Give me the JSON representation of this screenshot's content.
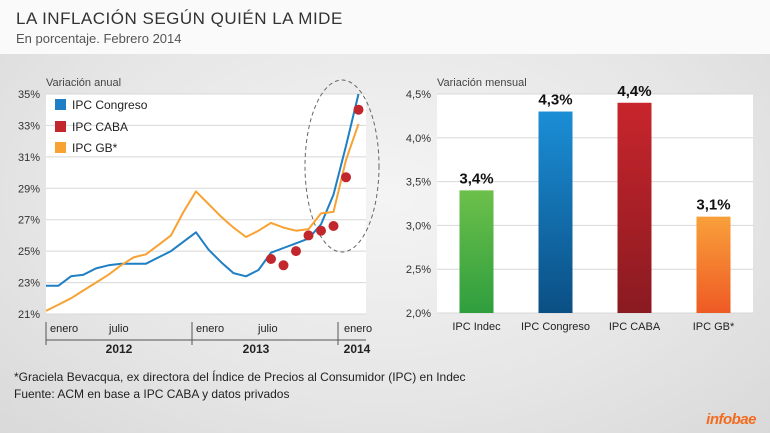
{
  "header": {
    "title": "LA INFLACIÓN SEGÚN QUIÉN LA MIDE",
    "subtitle": "En porcentaje. Febrero 2014"
  },
  "footer": {
    "note": "*Graciela Bevacqua, ex directora del Índice de Precios al Consumidor (IPC) en Indec",
    "source": "Fuente: ACM en base a IPC CABA y datos privados",
    "brand": "infobae"
  },
  "chart_data": [
    {
      "type": "line",
      "title": "Variación anual",
      "legend": [
        "IPC Congreso",
        "IPC CABA",
        "IPC GB*"
      ],
      "legend_placement": "top-left",
      "x_axis": {
        "month_labels": [
          "enero",
          "julio",
          "enero",
          "julio",
          "enero"
        ],
        "year_labels": [
          "2012",
          "2013",
          "2014"
        ]
      },
      "y_axis": {
        "ylim": [
          21,
          35
        ],
        "ticks": [
          "21%",
          "23%",
          "25%",
          "27%",
          "29%",
          "31%",
          "33%",
          "35%"
        ]
      },
      "grid": true,
      "highlight": "dashed ellipse around Dec 2013 – Feb 2014",
      "series": [
        {
          "name": "IPC Congreso",
          "color": "#1f7fc4",
          "style": "line",
          "x": [
            0,
            1,
            2,
            3,
            4,
            5,
            6,
            7,
            8,
            9,
            10,
            11,
            12,
            13,
            14,
            15,
            16,
            17,
            18,
            19,
            20,
            21,
            22,
            23,
            24,
            25
          ],
          "y": [
            22.8,
            22.8,
            23.4,
            23.5,
            23.9,
            24.1,
            24.2,
            24.2,
            24.2,
            24.6,
            25.0,
            25.6,
            26.2,
            25.1,
            24.3,
            23.6,
            23.4,
            23.8,
            24.9,
            25.2,
            25.5,
            25.8,
            26.7,
            28.6,
            31.7,
            35.0
          ]
        },
        {
          "name": "IPC GB*",
          "color": "#f7a233",
          "style": "line",
          "x": [
            0,
            1,
            2,
            3,
            4,
            5,
            6,
            7,
            8,
            9,
            10,
            11,
            12,
            13,
            14,
            15,
            16,
            17,
            18,
            19,
            20,
            21,
            22,
            23,
            24,
            25
          ],
          "y": [
            21.2,
            21.6,
            22.0,
            22.5,
            23.0,
            23.5,
            24.1,
            24.6,
            24.8,
            25.4,
            26.0,
            27.5,
            28.8,
            28.0,
            27.2,
            26.5,
            25.9,
            26.3,
            26.8,
            26.5,
            26.3,
            26.4,
            27.4,
            27.5,
            30.8,
            33.1
          ]
        },
        {
          "name": "IPC CABA",
          "color": "#c1272d",
          "style": "markers",
          "x": [
            18,
            19,
            20,
            21,
            22,
            23,
            24,
            25
          ],
          "y": [
            24.5,
            24.1,
            25.0,
            26.0,
            26.3,
            26.6,
            29.7,
            34.0
          ]
        }
      ]
    },
    {
      "type": "bar",
      "title": "Variación mensual",
      "categories": [
        "IPC Indec",
        "IPC Congreso",
        "IPC CABA",
        "IPC GB*"
      ],
      "values": [
        3.4,
        4.3,
        4.4,
        3.1
      ],
      "value_labels": [
        "3,4%",
        "4,3%",
        "4,4%",
        "3,1%"
      ],
      "colors": [
        "#3aa842",
        "#1f7fc4",
        "#c1272d",
        "#f47b20"
      ],
      "ylim": [
        2.0,
        4.5
      ],
      "y_ticks": [
        "2,0%",
        "2,5%",
        "3,0%",
        "3,5%",
        "4,0%",
        "4,5%"
      ],
      "grid": true
    }
  ]
}
